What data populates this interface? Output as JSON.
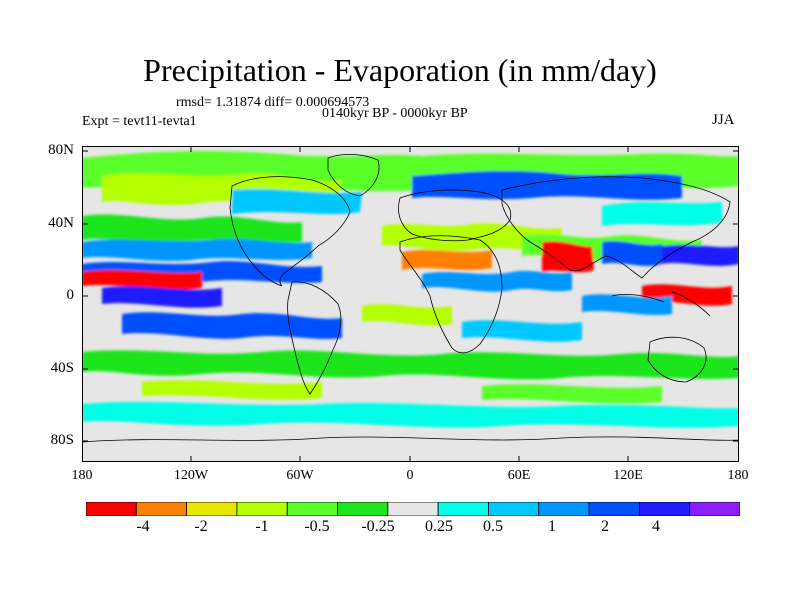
{
  "title": "Precipitation - Evaporation (in mm/day)",
  "stats": "rmsd= 1.31874 diff= 0.000694573",
  "period": "0140kyr BP - 0000kyr BP",
  "experiment": "Expt = tevt11-tevta1",
  "season": "JJA",
  "lat_labels": [
    "80N",
    "40N",
    "0",
    "40S",
    "80S"
  ],
  "lon_labels": [
    "180",
    "120W",
    "60W",
    "0",
    "60E",
    "120E",
    "180"
  ],
  "colorbar": {
    "colors": [
      "#ff0000",
      "#ff8000",
      "#e6e600",
      "#b4ff00",
      "#5aff2a",
      "#1ee51e",
      "#e6e6e6",
      "#00ffe6",
      "#00c8ff",
      "#0096ff",
      "#0050ff",
      "#1e1eff",
      "#8c1eff"
    ],
    "labels": [
      "-4",
      "-2",
      "-1",
      "-0.5",
      "-0.25",
      "0.25",
      "0.5",
      "1",
      "2",
      "4"
    ]
  }
}
